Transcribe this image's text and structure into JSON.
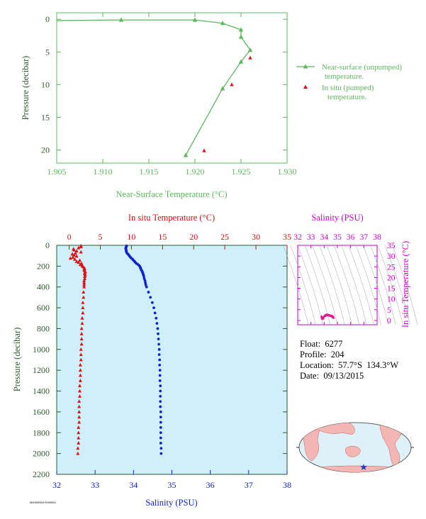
{
  "chart_data": [
    {
      "type": "line",
      "title": "",
      "xlabel": "Near-Surface Temperature (°C)",
      "ylabel": "Pressure (decibar)",
      "xlim": [
        1.905,
        1.93
      ],
      "ylim": [
        22,
        -1
      ],
      "x_ticks": [
        "1.905",
        "1.910",
        "1.915",
        "1.920",
        "1.925",
        "1.930"
      ],
      "y_ticks": [
        "0",
        "5",
        "10",
        "15",
        "20"
      ],
      "legend_position": "right",
      "series": [
        {
          "name": "Near-surface (unpumped) temperature.",
          "color": "#5cb85c",
          "x": [
            1.9,
            1.912,
            1.92,
            1.923,
            1.925,
            1.925,
            1.926,
            1.925,
            1.923,
            1.919
          ],
          "y": [
            0.2,
            0.1,
            0.1,
            0.6,
            1.6,
            2.7,
            4.7,
            6.5,
            10.6,
            20.8
          ]
        },
        {
          "name": "In situ (pumped) temperature.",
          "color": "#dd1111",
          "x": [
            1.926,
            1.924,
            1.921
          ],
          "y": [
            5.9,
            10.0,
            20.1
          ]
        }
      ]
    },
    {
      "type": "scatter",
      "title": "",
      "xlabel_top": "In situ Temperature (°C)",
      "xlabel_bottom": "Salinity (PSU)",
      "ylabel": "Pressure (decibar)",
      "top_xlim": [
        -2,
        35
      ],
      "bottom_xlim": [
        32,
        38
      ],
      "ylim": [
        2200,
        0
      ],
      "top_ticks": [
        "0",
        "5",
        "10",
        "15",
        "20",
        "25",
        "30",
        "35"
      ],
      "bottom_ticks": [
        "32",
        "33",
        "34",
        "35",
        "36",
        "37",
        "38"
      ],
      "y_ticks": [
        "0",
        "200",
        "400",
        "600",
        "800",
        "1000",
        "1200",
        "1400",
        "1600",
        "1800",
        "2000",
        "2200"
      ],
      "series": [
        {
          "name": "Temperature",
          "color": "#dd1111",
          "marker": "triangle",
          "pressure": [
            5,
            15,
            25,
            35,
            45,
            55,
            65,
            75,
            85,
            95,
            105,
            115,
            125,
            135,
            145,
            155,
            165,
            175,
            185,
            195,
            205,
            215,
            225,
            235,
            245,
            255,
            265,
            275,
            285,
            300,
            320,
            340,
            360,
            380,
            400,
            450,
            500,
            550,
            600,
            650,
            700,
            750,
            800,
            850,
            900,
            950,
            1000,
            1050,
            1100,
            1150,
            1200,
            1250,
            1300,
            1350,
            1400,
            1450,
            1500,
            1550,
            1600,
            1650,
            1700,
            1750,
            1800,
            1850,
            1900,
            1950,
            2000
          ],
          "temperature": [
            1.9,
            1.9,
            1.5,
            0.7,
            0.8,
            1.2,
            1.9,
            1.0,
            0.5,
            0.8,
            1.2,
            0.6,
            0.2,
            0.9,
            1.7,
            1.2,
            1.5,
            2.0,
            1.8,
            2.1,
            2.2,
            2.4,
            2.5,
            2.4,
            2.5,
            2.6,
            2.5,
            2.5,
            2.6,
            2.5,
            2.5,
            2.4,
            2.4,
            2.4,
            2.4,
            2.3,
            2.3,
            2.2,
            2.2,
            2.2,
            2.1,
            2.1,
            2.0,
            2.0,
            2.0,
            2.0,
            1.9,
            1.9,
            1.9,
            1.8,
            1.8,
            1.8,
            1.8,
            1.7,
            1.7,
            1.7,
            1.6,
            1.6,
            1.6,
            1.6,
            1.6,
            1.5,
            1.5,
            1.5,
            1.5,
            1.4,
            1.4
          ]
        },
        {
          "name": "Salinity",
          "color": "#1122cc",
          "marker": "circle",
          "pressure": [
            5,
            15,
            25,
            35,
            45,
            55,
            65,
            75,
            85,
            95,
            105,
            115,
            125,
            135,
            145,
            155,
            165,
            175,
            185,
            195,
            205,
            215,
            225,
            235,
            245,
            255,
            265,
            275,
            285,
            300,
            320,
            340,
            360,
            380,
            400,
            450,
            500,
            550,
            600,
            650,
            700,
            750,
            800,
            850,
            900,
            950,
            1000,
            1050,
            1100,
            1150,
            1200,
            1250,
            1300,
            1350,
            1400,
            1450,
            1500,
            1550,
            1600,
            1650,
            1700,
            1750,
            1800,
            1850,
            1900,
            1950,
            2000
          ],
          "salinity": [
            33.82,
            33.81,
            33.8,
            33.8,
            33.81,
            33.81,
            33.82,
            33.83,
            33.86,
            33.88,
            33.9,
            33.92,
            33.95,
            33.98,
            34.0,
            34.03,
            34.05,
            34.08,
            34.12,
            34.15,
            34.17,
            34.18,
            34.19,
            34.2,
            34.22,
            34.23,
            34.24,
            34.25,
            34.26,
            34.27,
            34.28,
            34.3,
            34.31,
            34.32,
            34.34,
            34.39,
            34.44,
            34.49,
            34.53,
            34.56,
            34.59,
            34.61,
            34.63,
            34.64,
            34.65,
            34.66,
            34.67,
            34.67,
            34.68,
            34.68,
            34.69,
            34.69,
            34.69,
            34.7,
            34.7,
            34.7,
            34.7,
            34.7,
            34.71,
            34.71,
            34.71,
            34.71,
            34.71,
            34.71,
            34.71,
            34.72,
            34.72
          ]
        }
      ]
    },
    {
      "type": "scatter",
      "title": "",
      "xlabel": "Salinity (PSU)",
      "ylabel": "In situ Temperature (°C)",
      "xlim": [
        32,
        38
      ],
      "ylim": [
        -2,
        35
      ],
      "x_ticks": [
        "32",
        "33",
        "34",
        "35",
        "36",
        "37",
        "38"
      ],
      "y_ticks": [
        "0",
        "5",
        "10",
        "15",
        "20",
        "25",
        "30",
        "35"
      ],
      "series": [
        {
          "name": "T-S",
          "color": "#e0189a",
          "points": [
            [
              33.8,
              1.9
            ],
            [
              33.82,
              1.3
            ],
            [
              33.86,
              0.8
            ],
            [
              33.9,
              1.0
            ],
            [
              33.95,
              1.6
            ],
            [
              34.0,
              2.0
            ],
            [
              34.05,
              2.2
            ],
            [
              34.1,
              2.4
            ],
            [
              34.15,
              2.5
            ],
            [
              34.2,
              2.6
            ],
            [
              34.25,
              2.6
            ],
            [
              34.3,
              2.5
            ],
            [
              34.35,
              2.4
            ],
            [
              34.4,
              2.3
            ],
            [
              34.45,
              2.3
            ],
            [
              34.5,
              2.2
            ],
            [
              34.55,
              2.1
            ],
            [
              34.6,
              2.0
            ],
            [
              34.62,
              1.9
            ],
            [
              34.65,
              1.8
            ],
            [
              34.67,
              1.7
            ],
            [
              34.69,
              1.6
            ],
            [
              34.7,
              1.5
            ],
            [
              34.71,
              1.4
            ],
            [
              34.72,
              1.3
            ],
            [
              33.85,
              1.5
            ],
            [
              33.92,
              1.2
            ],
            [
              34.08,
              2.3
            ],
            [
              34.38,
              2.4
            ],
            [
              34.58,
              2.1
            ]
          ]
        }
      ]
    }
  ],
  "info": {
    "float": "Float:  6277",
    "profile": "Profile:  204",
    "location": "Location:  57.7°S  134.3°W",
    "date": "Date:  09/13/2015"
  },
  "footnote": "M4000M04 0000000",
  "map": {
    "marker": "star",
    "marker_color": "#1a3fc4",
    "ocean_color": "#dff1f8",
    "land_color": "#f4b6b2"
  },
  "colors": {
    "green": "#5cb85c",
    "red": "#dd1111",
    "blue": "#1122cc",
    "magenta": "#cc00cc",
    "panel_bg": "#cfeffa"
  }
}
